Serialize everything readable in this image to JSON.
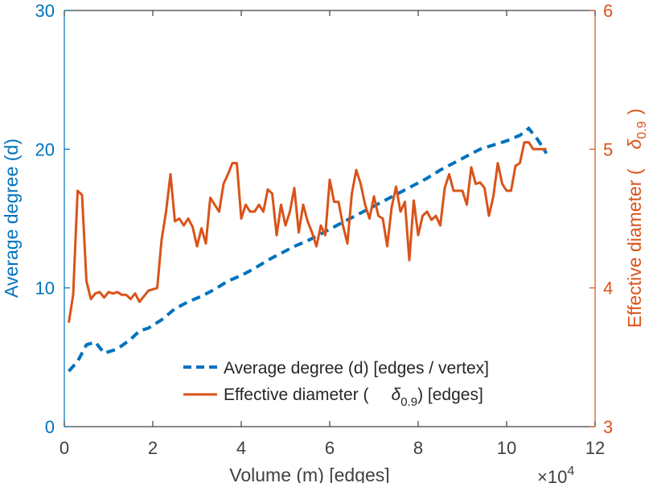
{
  "chart_data": {
    "type": "line",
    "title": "",
    "xlabel": "Volume (m) [edges]",
    "x_exponent_label": "×10",
    "x_exponent_power": "4",
    "xlim": [
      0,
      12
    ],
    "xticks": [
      "0",
      "2",
      "4",
      "6",
      "8",
      "10",
      "12"
    ],
    "y_left": {
      "label": "Average degree (d)",
      "lim": [
        0,
        30
      ],
      "ticks": [
        "0",
        "10",
        "20",
        "30"
      ],
      "color": "#0072BD"
    },
    "y_right": {
      "label_prefix": "Effective diameter (",
      "label_symbol": "δ",
      "label_sub": "0.9",
      "label_suffix": ")",
      "lim": [
        3,
        6
      ],
      "ticks": [
        "3",
        "4",
        "5",
        "6"
      ],
      "color": "#D95319"
    },
    "legend": {
      "position": "bottom-right",
      "entries": [
        {
          "text": "Average degree (d) [edges / vertex]"
        },
        {
          "text_prefix": "Effective diameter (",
          "symbol": "δ",
          "sub": "0.9",
          "text_suffix": ") [edges]"
        }
      ]
    },
    "series": [
      {
        "name": "Average degree (d) [edges / vertex]",
        "axis": "left",
        "style": "dashed",
        "color": "#0072BD",
        "x": [
          0.1,
          0.3,
          0.5,
          0.7,
          0.9,
          1.2,
          1.5,
          1.7,
          1.9,
          2.2,
          2.5,
          2.8,
          3.1,
          3.4,
          3.7,
          4.0,
          4.3,
          4.6,
          4.9,
          5.2,
          5.5,
          5.8,
          6.1,
          6.4,
          6.7,
          7.0,
          7.3,
          7.6,
          7.9,
          8.2,
          8.5,
          8.8,
          9.1,
          9.4,
          9.7,
          10.0,
          10.3,
          10.5,
          10.7,
          10.9
        ],
        "y": [
          4.0,
          4.7,
          5.9,
          6.1,
          5.3,
          5.6,
          6.3,
          6.9,
          7.1,
          7.7,
          8.5,
          9.0,
          9.4,
          9.9,
          10.5,
          10.9,
          11.4,
          12.0,
          12.5,
          13.0,
          13.4,
          13.9,
          14.4,
          14.9,
          15.4,
          15.9,
          16.4,
          16.9,
          17.4,
          17.9,
          18.5,
          19.0,
          19.5,
          20.0,
          20.3,
          20.6,
          21.0,
          21.5,
          20.7,
          19.7
        ]
      },
      {
        "name": "Effective diameter (δ0.9) [edges]",
        "axis": "right",
        "style": "solid",
        "color": "#D95319",
        "x": [
          0.1,
          0.2,
          0.3,
          0.4,
          0.5,
          0.6,
          0.7,
          0.8,
          0.9,
          1.0,
          1.1,
          1.2,
          1.3,
          1.4,
          1.5,
          1.6,
          1.7,
          1.8,
          1.9,
          2.0,
          2.1,
          2.2,
          2.3,
          2.4,
          2.5,
          2.6,
          2.7,
          2.8,
          2.9,
          3.0,
          3.1,
          3.2,
          3.3,
          3.4,
          3.5,
          3.6,
          3.7,
          3.8,
          3.9,
          4.0,
          4.1,
          4.2,
          4.3,
          4.4,
          4.5,
          4.6,
          4.7,
          4.8,
          4.9,
          5.0,
          5.1,
          5.2,
          5.3,
          5.4,
          5.5,
          5.6,
          5.7,
          5.8,
          5.9,
          6.0,
          6.1,
          6.2,
          6.3,
          6.4,
          6.5,
          6.6,
          6.7,
          6.8,
          6.9,
          7.0,
          7.1,
          7.2,
          7.3,
          7.4,
          7.5,
          7.6,
          7.7,
          7.8,
          7.9,
          8.0,
          8.1,
          8.2,
          8.3,
          8.4,
          8.5,
          8.6,
          8.7,
          8.8,
          8.9,
          9.0,
          9.1,
          9.2,
          9.3,
          9.4,
          9.5,
          9.6,
          9.7,
          9.8,
          9.9,
          10.0,
          10.1,
          10.2,
          10.3,
          10.4,
          10.5,
          10.6,
          10.7,
          10.8,
          10.9
        ],
        "y": [
          3.75,
          3.95,
          4.7,
          4.67,
          4.05,
          3.92,
          3.96,
          3.97,
          3.93,
          3.97,
          3.96,
          3.97,
          3.95,
          3.95,
          3.92,
          3.96,
          3.9,
          3.94,
          3.98,
          3.99,
          4.0,
          4.35,
          4.55,
          4.82,
          4.48,
          4.5,
          4.45,
          4.5,
          4.44,
          4.3,
          4.43,
          4.32,
          4.65,
          4.6,
          4.55,
          4.75,
          4.82,
          4.9,
          4.9,
          4.5,
          4.6,
          4.55,
          4.55,
          4.6,
          4.55,
          4.71,
          4.68,
          4.38,
          4.6,
          4.45,
          4.55,
          4.72,
          4.4,
          4.6,
          4.48,
          4.4,
          4.3,
          4.45,
          4.38,
          4.78,
          4.62,
          4.62,
          4.45,
          4.32,
          4.68,
          4.85,
          4.75,
          4.6,
          4.5,
          4.66,
          4.52,
          4.5,
          4.3,
          4.58,
          4.73,
          4.55,
          4.62,
          4.2,
          4.63,
          4.38,
          4.52,
          4.55,
          4.49,
          4.52,
          4.45,
          4.72,
          4.82,
          4.7,
          4.7,
          4.7,
          4.6,
          4.87,
          4.75,
          4.76,
          4.72,
          4.52,
          4.66,
          4.9,
          4.75,
          4.7,
          4.7,
          4.88,
          4.9,
          5.05,
          5.05,
          5.0,
          5.0,
          5.0,
          5.0
        ],
        "note": "x spacing ~0.1 units from 0.1 to 10.9"
      }
    ]
  }
}
